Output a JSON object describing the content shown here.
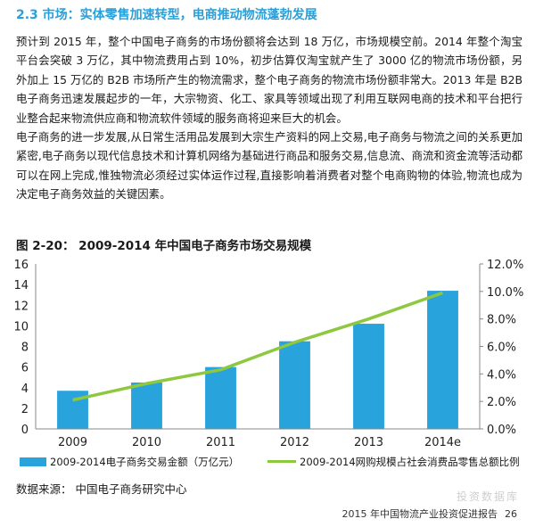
{
  "section": {
    "title": "2.3 市场：实体零售加速转型，电商推动物流蓬勃发展"
  },
  "paragraphs": [
    "预计到 2015 年，整个中国电子商务的市场份额将会达到 18 万亿，市场规模空前。2014 年整个淘宝平台会突破 3 万亿，其中物流费用占到 10%，初步估算仅淘宝就产生了 3000 亿的物流市场份额，另外加上 15 万亿的 B2B 市场所产生的物流需求，整个电子商务的物流市场份额非常大。2013 年是 B2B 电子商务迅速发展起步的一年，大宗物资、化工、家具等领域出现了利用互联网电商的技术和平台把行业整合起来物流供应商和物流软件领域的服务商将迎来巨大的机会。",
    "电子商务的进一步发展,从日常生活用品发展到大宗生产资料的网上交易,电子商务与物流之间的关系更加紧密,电子商务以现代信息技术和计算机网络为基础进行商品和服务交易,信息流、商流和资金流等活动都可以在网上完成,惟独物流必须经过实体运作过程,直接影响着消费者对整个电商购物的体验,物流也成为决定电子商务效益的关键因素。"
  ],
  "figure": {
    "title": "图 2-20： 2009-2014 年中国电子商务市场交易规模"
  },
  "chart_data": {
    "type": "bar",
    "categories": [
      "2009",
      "2010",
      "2011",
      "2012",
      "2013",
      "2014e"
    ],
    "series": [
      {
        "name": "2009-2014电子商务交易金额（万亿元）",
        "type": "bar",
        "axis": "left",
        "color": "#29a3dc",
        "values": [
          3.7,
          4.5,
          6.0,
          8.5,
          10.2,
          13.4
        ]
      },
      {
        "name": "2009-2014网购规模占社会消费品零售总额比例",
        "type": "line",
        "axis": "right",
        "color": "#8dc83f",
        "values": [
          2.1,
          3.3,
          4.3,
          6.3,
          8.0,
          9.9
        ]
      }
    ],
    "y_left": {
      "min": 0,
      "max": 16,
      "ticks": [
        "0",
        "2",
        "4",
        "6",
        "8",
        "10",
        "12",
        "14",
        "16"
      ]
    },
    "y_right": {
      "min": 0,
      "max": 12,
      "ticks": [
        "0.0%",
        "2.0%",
        "4.0%",
        "6.0%",
        "8.0%",
        "10.0%",
        "12.0%"
      ]
    },
    "grid": false,
    "legend_position": "bottom"
  },
  "source_note": "数据来源： 中国电子商务研究中心",
  "watermark": "投资数据库",
  "footer": {
    "text": "2015 年中国物流产业投资促进报告",
    "page": "26"
  }
}
